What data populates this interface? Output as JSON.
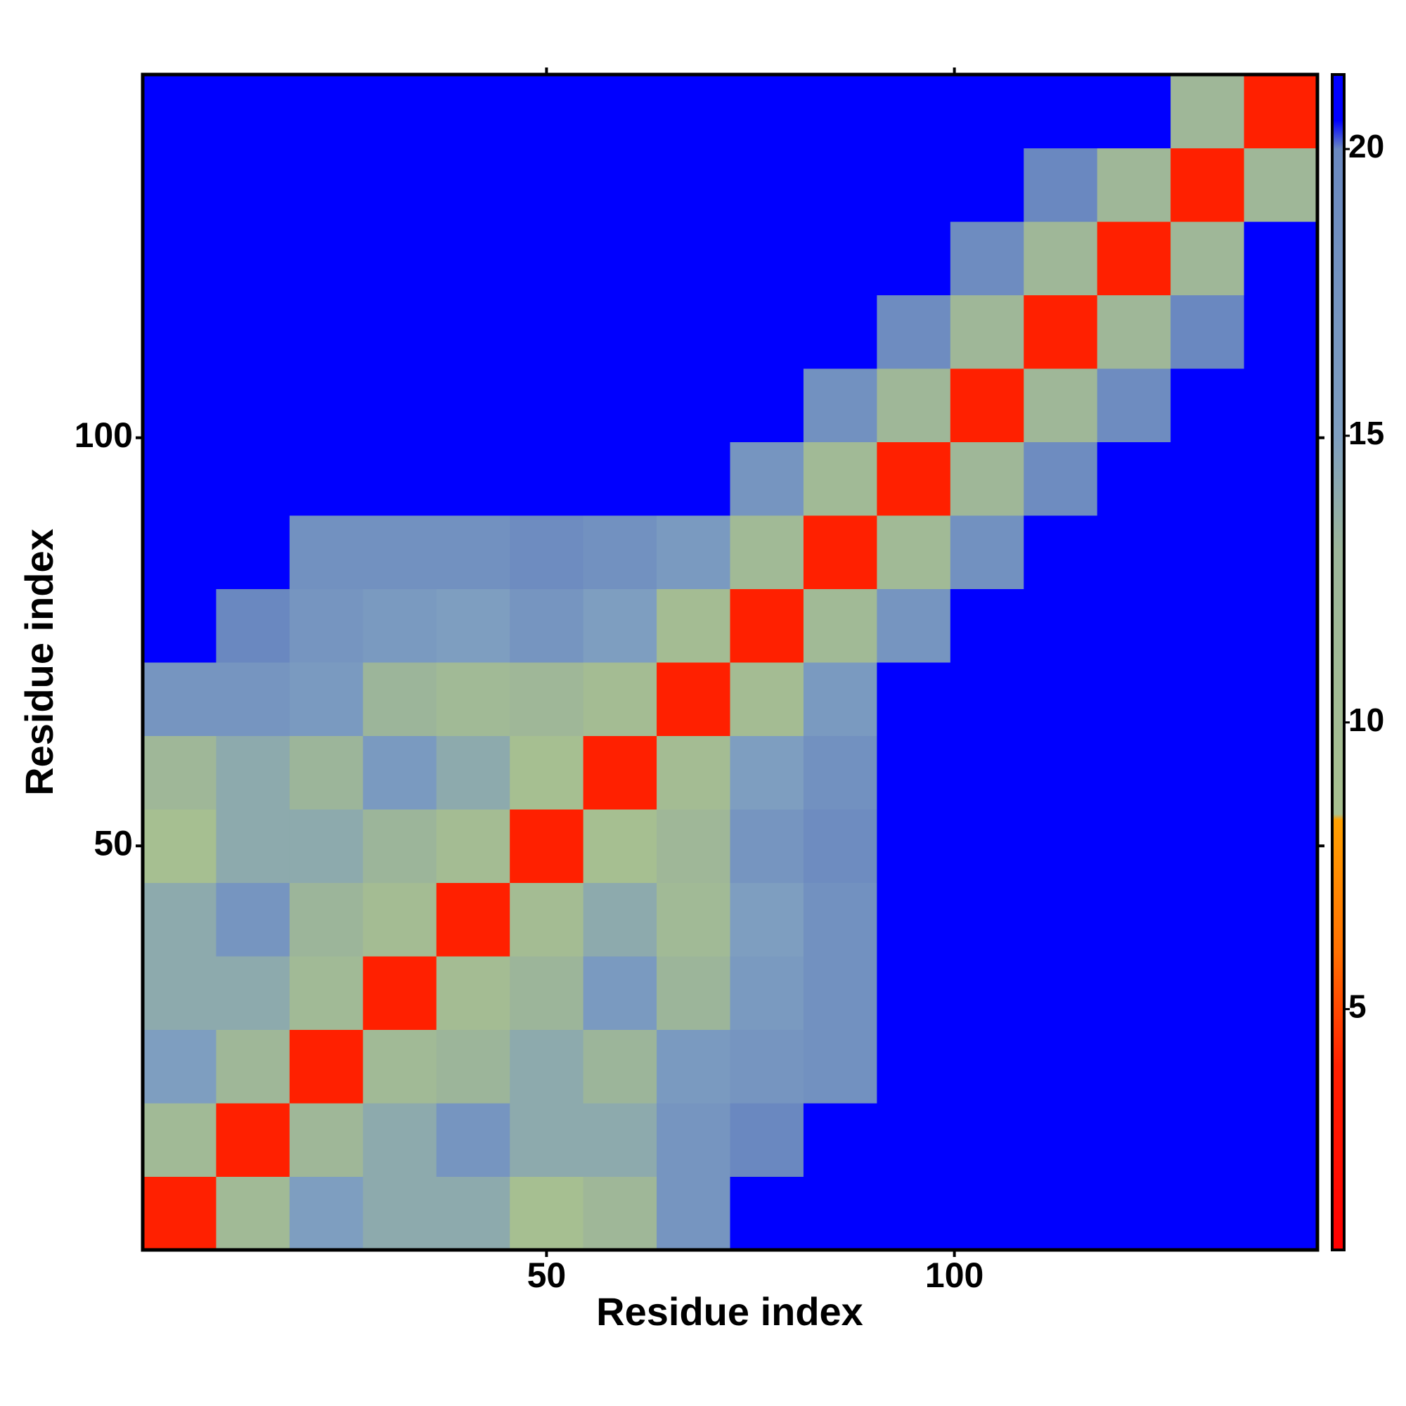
{
  "chart_data": {
    "type": "heatmap",
    "xlabel": "Residue index",
    "ylabel": "Residue index",
    "x": [
      5,
      14,
      23,
      32,
      41,
      50,
      59,
      68,
      77,
      86,
      95,
      104,
      113,
      122,
      131,
      140
    ],
    "y": [
      5,
      14,
      23,
      32,
      41,
      50,
      59,
      68,
      77,
      86,
      95,
      104,
      113,
      122,
      131,
      140
    ],
    "cell_size": 9,
    "z": [
      [
        4,
        11,
        15,
        14,
        14,
        9,
        12,
        17,
        21,
        21,
        21,
        21,
        21,
        21,
        21,
        21
      ],
      [
        11,
        4,
        12,
        14,
        17,
        14,
        14,
        17,
        20,
        21,
        21,
        21,
        21,
        21,
        21,
        21
      ],
      [
        15,
        12,
        4,
        11,
        13,
        14,
        13,
        16,
        17,
        18,
        21,
        21,
        21,
        21,
        21,
        21
      ],
      [
        14,
        14,
        11,
        4,
        10,
        13,
        16,
        13,
        16,
        18,
        21,
        21,
        21,
        21,
        21,
        21
      ],
      [
        14,
        17,
        13,
        10,
        4,
        10,
        14,
        11,
        15,
        18,
        21,
        21,
        21,
        21,
        21,
        21
      ],
      [
        9,
        14,
        14,
        13,
        10,
        4,
        9,
        12,
        17,
        19,
        21,
        21,
        21,
        21,
        21,
        21
      ],
      [
        12,
        14,
        13,
        16,
        14,
        9,
        4,
        10,
        15,
        18,
        21,
        21,
        21,
        21,
        21,
        21
      ],
      [
        17,
        17,
        16,
        13,
        11,
        12,
        10,
        4,
        10,
        16,
        21,
        21,
        21,
        21,
        21,
        21
      ],
      [
        21,
        20,
        17,
        16,
        15,
        17,
        15,
        10,
        4,
        11,
        17,
        21,
        21,
        21,
        21,
        21
      ],
      [
        21,
        21,
        18,
        18,
        18,
        19,
        18,
        16,
        11,
        4,
        11,
        18,
        21,
        21,
        21,
        21
      ],
      [
        21,
        21,
        21,
        21,
        21,
        21,
        21,
        21,
        17,
        11,
        4,
        12,
        19,
        21,
        21,
        21
      ],
      [
        21,
        21,
        21,
        21,
        21,
        21,
        21,
        21,
        21,
        18,
        12,
        4,
        12,
        19,
        21,
        21
      ],
      [
        21,
        21,
        21,
        21,
        21,
        21,
        21,
        21,
        21,
        21,
        19,
        12,
        4,
        12,
        20,
        21
      ],
      [
        21,
        21,
        21,
        21,
        21,
        21,
        21,
        21,
        21,
        21,
        21,
        19,
        12,
        4,
        12,
        21
      ],
      [
        21,
        21,
        21,
        21,
        21,
        21,
        21,
        21,
        21,
        21,
        21,
        21,
        20,
        12,
        4,
        12
      ],
      [
        21,
        21,
        21,
        21,
        21,
        21,
        21,
        21,
        21,
        21,
        21,
        21,
        21,
        21,
        12,
        4
      ]
    ],
    "xlim": [
      0.5,
      144.5
    ],
    "ylim": [
      0.5,
      144.5
    ],
    "xticks": [
      50,
      100
    ],
    "yticks": [
      50,
      100
    ],
    "zlim": [
      0.8,
      21.3
    ],
    "zticks": [
      5,
      10,
      15,
      20
    ],
    "colorscale": [
      {
        "value": 0.8,
        "color": "#ff0000"
      },
      {
        "value": 4,
        "color": "#ff2000"
      },
      {
        "value": 6,
        "color": "#ff7000"
      },
      {
        "value": 8.3,
        "color": "#ffa000"
      },
      {
        "value": 8.4,
        "color": "#a8c090"
      },
      {
        "value": 13,
        "color": "#9cb59a"
      },
      {
        "value": 15,
        "color": "#7e9ec0"
      },
      {
        "value": 20,
        "color": "#6a88c0"
      },
      {
        "value": 20.5,
        "color": "#0000ff"
      },
      {
        "value": 21.3,
        "color": "#0000ff"
      }
    ]
  }
}
